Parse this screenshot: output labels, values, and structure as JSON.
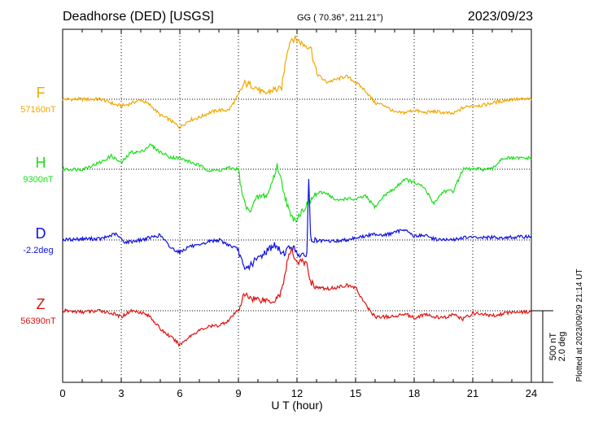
{
  "header": {
    "station": "Deadhorse (DED)  [USGS]",
    "coords": "GG ( 70.36°, 211.21°)",
    "date": "2023/09/23"
  },
  "footer": {
    "plotted": "Plotted at 2023/09/29 21:14 UT"
  },
  "scale": {
    "nT": "500 nT",
    "deg": "2.0 deg"
  },
  "chart_data": {
    "type": "line",
    "xlabel": "U T (hour)",
    "xlim": [
      0,
      24
    ],
    "xticks": [
      0,
      3,
      6,
      9,
      12,
      15,
      18,
      21,
      24
    ],
    "grid": true,
    "series": [
      {
        "name": "F",
        "baseline_label": "57160nT",
        "color": "#f0a800",
        "x": [
          0,
          1,
          2,
          2.8,
          3.2,
          4,
          4.5,
          5,
          5.5,
          6,
          6.5,
          7,
          7.5,
          8,
          8.5,
          9,
          9.3,
          9.8,
          10.3,
          10.8,
          11.2,
          11.5,
          11.7,
          12.0,
          12.3,
          12.5,
          12.7,
          13,
          13.5,
          14,
          14.5,
          15,
          15.5,
          16,
          16.5,
          17,
          17.5,
          18,
          18.5,
          19,
          19.5,
          20,
          20.5,
          21,
          21.5,
          22,
          23,
          24
        ],
        "values": [
          0,
          0,
          0,
          -5,
          -5,
          -0.5,
          -5,
          -13,
          -17,
          -23,
          -17,
          -15,
          -11,
          -9,
          -9,
          3,
          13,
          11,
          4,
          8,
          8,
          40,
          50,
          49,
          45,
          44,
          43,
          21,
          14,
          16,
          19,
          14,
          7,
          -3,
          -5,
          -11,
          -11,
          -9,
          -11,
          -10,
          -11,
          -12,
          -7,
          -5,
          -5,
          -3,
          0,
          0
        ]
      },
      {
        "name": "H",
        "baseline_label": "9300nT",
        "color": "#1ae01a",
        "x": [
          0,
          1,
          2,
          2.5,
          3,
          3.5,
          4,
          4.5,
          5,
          5.5,
          6,
          6.5,
          7,
          7.5,
          8,
          8.5,
          9,
          9.2,
          9.5,
          10,
          10.5,
          11,
          11.5,
          11.7,
          12,
          12.5,
          13,
          13.5,
          14,
          14.5,
          15,
          15.5,
          16,
          16.5,
          17,
          17.5,
          18,
          18.5,
          19,
          19.5,
          20,
          20.5,
          21,
          21.5,
          22,
          22.5,
          23,
          24
        ],
        "values": [
          0,
          0,
          6,
          11,
          5,
          14,
          14,
          20,
          14,
          10,
          9,
          6,
          3,
          -1,
          -1,
          1,
          0,
          -22,
          -35,
          -23,
          -21,
          3,
          -29,
          -40,
          -40,
          -29,
          -20,
          -19,
          -26,
          -24,
          -25,
          -22,
          -31,
          -21,
          -16,
          -8,
          -11,
          -15,
          -28,
          -18,
          -18,
          0,
          0,
          0,
          0,
          9,
          9,
          9
        ]
      },
      {
        "name": "D",
        "baseline_label": "-2.2deg",
        "color": "#1010e0",
        "x": [
          0,
          1,
          2,
          2.7,
          3.2,
          4,
          5,
          5.5,
          6,
          6.5,
          7,
          7.5,
          8,
          8.5,
          9,
          9.3,
          9.8,
          10.3,
          10.8,
          11.3,
          11.7,
          12.0,
          12.3,
          12.5,
          12.6,
          12.7,
          13,
          13.5,
          14,
          14.5,
          15,
          15.5,
          16,
          16.5,
          17,
          17.5,
          18,
          18.5,
          19,
          19.5,
          20,
          20.5,
          21,
          22,
          23,
          24
        ],
        "values": [
          0,
          1,
          1,
          5,
          -2,
          0,
          4,
          -6,
          -10,
          -5,
          -5,
          -1,
          0,
          -4,
          -8,
          -25,
          -18,
          -11,
          -4,
          -11,
          -5,
          -10,
          -14,
          -12,
          50,
          0,
          -1,
          -1,
          -1,
          0,
          2,
          3,
          5,
          4,
          6,
          9,
          3,
          4,
          1,
          0,
          0,
          2,
          2,
          2,
          2,
          3
        ]
      },
      {
        "name": "Z",
        "baseline_label": "56390nT",
        "color": "#e01010",
        "x": [
          0,
          1,
          2,
          2.5,
          3,
          3.5,
          4,
          4.5,
          5,
          5.5,
          6,
          6.5,
          7,
          7.5,
          8,
          8.5,
          9,
          9.3,
          9.8,
          10.3,
          10.8,
          11.2,
          11.5,
          11.7,
          12.0,
          12.3,
          12.5,
          12.7,
          13,
          13.5,
          14,
          14.5,
          15,
          15.5,
          16,
          16.5,
          17,
          17.5,
          18,
          18.5,
          19,
          19.5,
          20,
          20.5,
          21,
          22,
          23,
          24
        ],
        "values": [
          0,
          -1,
          0,
          -2,
          -5,
          0,
          -1,
          -5,
          -15,
          -21,
          -28,
          -21,
          -16,
          -13,
          -12,
          -8,
          1,
          13,
          10,
          9,
          8,
          15,
          40,
          50,
          40,
          40,
          38,
          24,
          19,
          18,
          19,
          21,
          19,
          5,
          -5,
          -5,
          -5,
          -2,
          -6,
          -3,
          -5,
          -6,
          -3,
          -7,
          -2,
          -4,
          -1,
          -1
        ]
      }
    ]
  }
}
